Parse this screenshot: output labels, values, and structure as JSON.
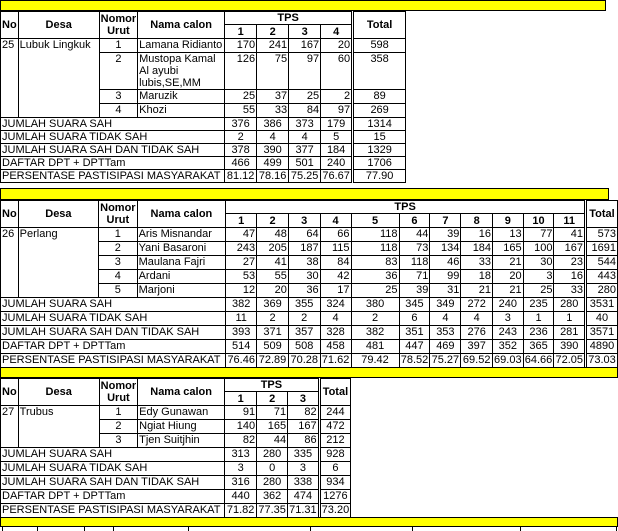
{
  "colors": {
    "band": "#ffff00",
    "border": "#000000",
    "text": "#000000",
    "background": "#ffffff"
  },
  "headers": {
    "no": "No",
    "desa": "Desa",
    "nomor_urut": "Nomor Urut",
    "nama_calon": "Nama calon",
    "tps": "TPS",
    "total": "Total"
  },
  "summary_labels": [
    "JUMLAH SUARA SAH",
    "JUMLAH SUARA TIDAK SAH",
    "JUMLAH SUARA SAH DAN TIDAK SAH",
    "DAFTAR DPT + DPTTam",
    "PERSENTASE PASTISIPASI MASYARAKAT"
  ],
  "tables": [
    {
      "no": "25",
      "desa": "Lubuk Lingkuk",
      "tps": [
        "1",
        "2",
        "3",
        "4"
      ],
      "candidates": [
        {
          "urut": "1",
          "nama": "Lamana Ridianto",
          "votes": [
            "170",
            "241",
            "167",
            "20"
          ],
          "total": "598"
        },
        {
          "urut": "2",
          "nama": "Mustopa Kamal Al ayubi lubis,SE,MM",
          "votes": [
            "126",
            "75",
            "97",
            "60"
          ],
          "total": "358"
        },
        {
          "urut": "3",
          "nama": "Maruzik",
          "votes": [
            "25",
            "37",
            "25",
            "2"
          ],
          "total": "89"
        },
        {
          "urut": "4",
          "nama": "Khozi",
          "votes": [
            "55",
            "33",
            "84",
            "97"
          ],
          "total": "269"
        }
      ],
      "summary": [
        {
          "values": [
            "376",
            "386",
            "373",
            "179"
          ],
          "total": "1314"
        },
        {
          "values": [
            "2",
            "4",
            "4",
            "5"
          ],
          "total": "15"
        },
        {
          "values": [
            "378",
            "390",
            "377",
            "184"
          ],
          "total": "1329"
        },
        {
          "values": [
            "466",
            "499",
            "501",
            "240"
          ],
          "total": "1706"
        },
        {
          "values": [
            "81.12",
            "78.16",
            "75.25",
            "76.67"
          ],
          "total": "77.90"
        }
      ]
    },
    {
      "no": "26",
      "desa": "Perlang",
      "tps": [
        "1",
        "2",
        "3",
        "4",
        "5",
        "6",
        "7",
        "8",
        "9",
        "10",
        "11"
      ],
      "candidates": [
        {
          "urut": "1",
          "nama": "Aris Misnandar",
          "votes": [
            "47",
            "48",
            "64",
            "66",
            "118",
            "44",
            "39",
            "16",
            "13",
            "77",
            "41"
          ],
          "total": "573"
        },
        {
          "urut": "2",
          "nama": "Yani Basaroni",
          "votes": [
            "243",
            "205",
            "187",
            "115",
            "118",
            "73",
            "134",
            "184",
            "165",
            "100",
            "167"
          ],
          "total": "1691"
        },
        {
          "urut": "3",
          "nama": "Maulana Fajri",
          "votes": [
            "27",
            "41",
            "38",
            "84",
            "83",
            "118",
            "46",
            "33",
            "21",
            "30",
            "23"
          ],
          "total": "544"
        },
        {
          "urut": "4",
          "nama": "Ardani",
          "votes": [
            "53",
            "55",
            "30",
            "42",
            "36",
            "71",
            "99",
            "18",
            "20",
            "3",
            "16"
          ],
          "total": "443"
        },
        {
          "urut": "5",
          "nama": "Marjoni",
          "votes": [
            "12",
            "20",
            "36",
            "17",
            "25",
            "39",
            "31",
            "21",
            "21",
            "25",
            "33"
          ],
          "total": "280"
        }
      ],
      "summary": [
        {
          "values": [
            "382",
            "369",
            "355",
            "324",
            "380",
            "345",
            "349",
            "272",
            "240",
            "235",
            "280"
          ],
          "total": "3531"
        },
        {
          "values": [
            "11",
            "2",
            "2",
            "4",
            "2",
            "6",
            "4",
            "4",
            "3",
            "1",
            "1"
          ],
          "total": "40"
        },
        {
          "values": [
            "393",
            "371",
            "357",
            "328",
            "382",
            "351",
            "353",
            "276",
            "243",
            "236",
            "281"
          ],
          "total": "3571"
        },
        {
          "values": [
            "514",
            "509",
            "508",
            "458",
            "481",
            "447",
            "469",
            "397",
            "352",
            "365",
            "390"
          ],
          "total": "4890"
        },
        {
          "values": [
            "76.46",
            "72.89",
            "70.28",
            "71.62",
            "79.42",
            "78.52",
            "75.27",
            "69.52",
            "69.03",
            "64.66",
            "72.05"
          ],
          "total": "73.03"
        }
      ]
    },
    {
      "no": "27",
      "desa": "Trubus",
      "tps": [
        "1",
        "2",
        "3"
      ],
      "candidates": [
        {
          "urut": "1",
          "nama": "Edy Gunawan",
          "votes": [
            "91",
            "71",
            "82"
          ],
          "total": "244"
        },
        {
          "urut": "2",
          "nama": "Ngiat Hiung",
          "votes": [
            "140",
            "165",
            "167"
          ],
          "total": "472"
        },
        {
          "urut": "3",
          "nama": "Tjen Suitjhin",
          "votes": [
            "82",
            "44",
            "86"
          ],
          "total": "212"
        }
      ],
      "summary": [
        {
          "values": [
            "313",
            "280",
            "335"
          ],
          "total": "928"
        },
        {
          "values": [
            "3",
            "0",
            "3"
          ],
          "total": "6"
        },
        {
          "values": [
            "316",
            "280",
            "338"
          ],
          "total": "934"
        },
        {
          "values": [
            "440",
            "362",
            "474"
          ],
          "total": "1276"
        },
        {
          "values": [
            "71.82",
            "77.35",
            "71.31"
          ],
          "total": "73.20"
        }
      ]
    }
  ]
}
